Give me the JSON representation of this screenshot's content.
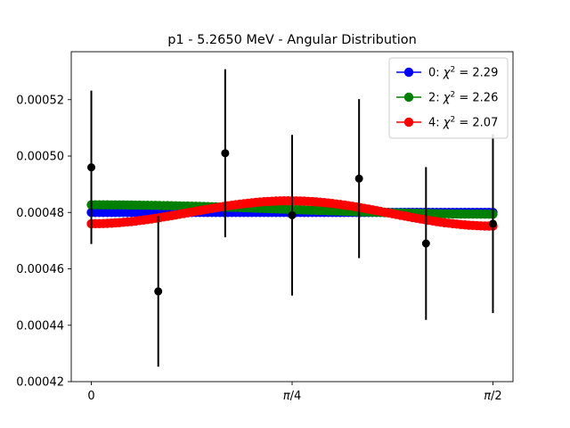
{
  "chart_data": {
    "type": "scatter",
    "title": "p1 - 5.2650 MeV - Angular Distribution",
    "xlabel": "",
    "ylabel": "",
    "xlim": [
      -0.0785,
      1.6493
    ],
    "ylim": [
      0.00042,
      0.000537
    ],
    "grid": false,
    "legend_position": "top-right",
    "x_ticks": [
      {
        "value": 0,
        "label": "0"
      },
      {
        "value": 0.7854,
        "label": "π/4"
      },
      {
        "value": 1.5708,
        "label": "π/2"
      }
    ],
    "y_ticks": [
      {
        "value": 0.00042,
        "label": "0.00042"
      },
      {
        "value": 0.00044,
        "label": "0.00044"
      },
      {
        "value": 0.00046,
        "label": "0.00046"
      },
      {
        "value": 0.00048,
        "label": "0.00048"
      },
      {
        "value": 0.0005,
        "label": "0.00050"
      },
      {
        "value": 0.00052,
        "label": "0.00052"
      }
    ],
    "measured": {
      "color": "#000000",
      "x": [
        0,
        0.2618,
        0.5236,
        0.7854,
        1.0472,
        1.309,
        1.5708
      ],
      "y": [
        0.000496,
        0.000452,
        0.000501,
        0.000479,
        0.000492,
        0.000469,
        0.000476
      ],
      "yerr": [
        2.72e-05,
        2.67e-05,
        2.98e-05,
        2.85e-05,
        2.82e-05,
        2.71e-05,
        3.17e-05
      ]
    },
    "series": [
      {
        "name": "0: χ² = 2.29",
        "legend_prefix": "0: ",
        "chi2": "2.29",
        "color": "#0000ff",
        "a0": 0.00048,
        "a2": 0,
        "a4": 0
      },
      {
        "name": "2: χ² = 2.26",
        "legend_prefix": "2: ",
        "chi2": "2.26",
        "color": "#008000",
        "a0": 0.0004805,
        "a2": 2.2e-06,
        "a4": 0
      },
      {
        "name": "4: χ² = 2.07",
        "legend_prefix": "4: ",
        "chi2": "2.07",
        "color": "#ff0000",
        "a0": 0.00048,
        "a2": 3.8e-06,
        "a4": -7.8e-06
      }
    ]
  }
}
